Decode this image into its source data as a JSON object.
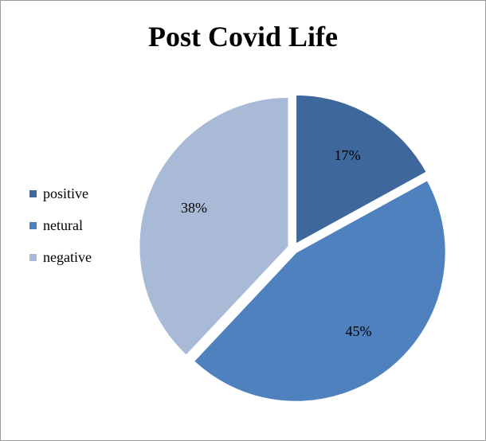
{
  "chart_data": {
    "type": "pie",
    "title": "Post Covid Life",
    "categories": [
      "positive",
      "netural",
      "negative"
    ],
    "values": [
      17,
      45,
      38
    ],
    "labels": [
      "17%",
      "45%",
      "38%"
    ],
    "colors": [
      "#3e679b",
      "#4e81bd",
      "#a9bad7"
    ],
    "legend": "left",
    "exploded": true
  }
}
